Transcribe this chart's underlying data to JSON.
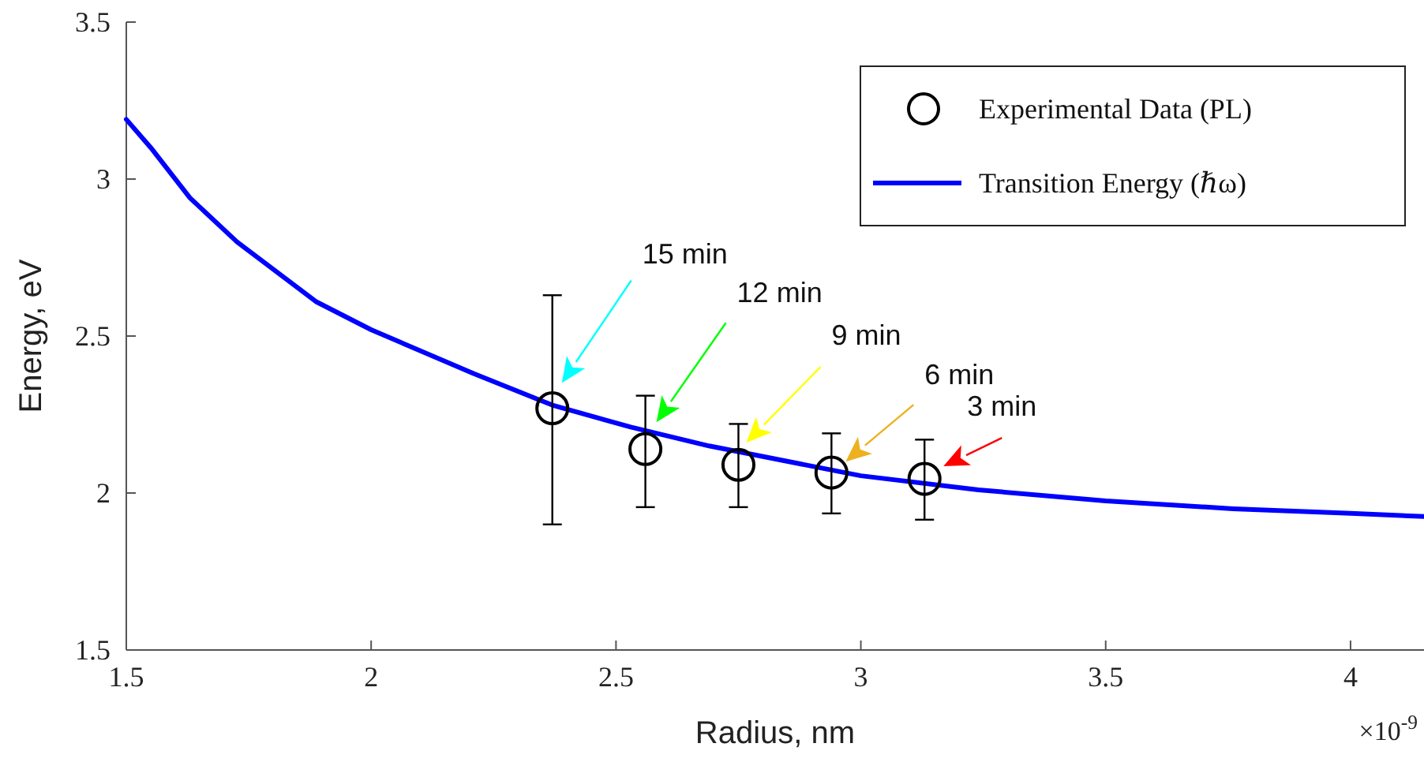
{
  "chart_data": {
    "type": "scatter",
    "xlabel": "Radius, nm",
    "ylabel": "Energy, eV",
    "xlim": [
      1.5,
      4.15
    ],
    "xticks": [
      1.5,
      2,
      2.5,
      3,
      3.5,
      4
    ],
    "ylim": [
      1.5,
      3.5
    ],
    "yticks": [
      1.5,
      2,
      2.5,
      3,
      3.5
    ],
    "grid": false,
    "legend": "top right",
    "series": [
      {
        "name": "Experimental Data (PL)",
        "type": "scatter",
        "color": "#000000",
        "marker": "circle",
        "x": [
          2.37,
          2.56,
          2.75,
          2.94,
          3.13
        ],
        "values": [
          2.27,
          2.14,
          2.09,
          2.065,
          2.045
        ],
        "errors": [
          [
            1.9,
            2.63
          ],
          [
            1.955,
            2.31
          ],
          [
            1.955,
            2.22
          ],
          [
            1.935,
            2.19
          ],
          [
            1.915,
            2.17
          ]
        ]
      },
      {
        "name": "Transition Energy (ℏω)",
        "type": "line",
        "color": "#0000ff",
        "marker": "none",
        "line_style": "solid",
        "x": [
          1.5,
          1.55,
          1.63,
          1.726,
          1.887,
          2.0,
          2.21,
          2.37,
          2.53,
          2.69,
          3.0,
          3.24,
          3.5,
          3.76,
          4.0,
          4.15
        ],
        "values": [
          3.19,
          3.1,
          2.94,
          2.8,
          2.61,
          2.52,
          2.38,
          2.28,
          2.21,
          2.15,
          2.055,
          2.01,
          1.975,
          1.95,
          1.935,
          1.925
        ]
      }
    ],
    "annotations": [
      "15 min",
      "12 min",
      "9 min",
      "6 min",
      "3 min",
      "×10$^{-9}$"
    ]
  }
}
